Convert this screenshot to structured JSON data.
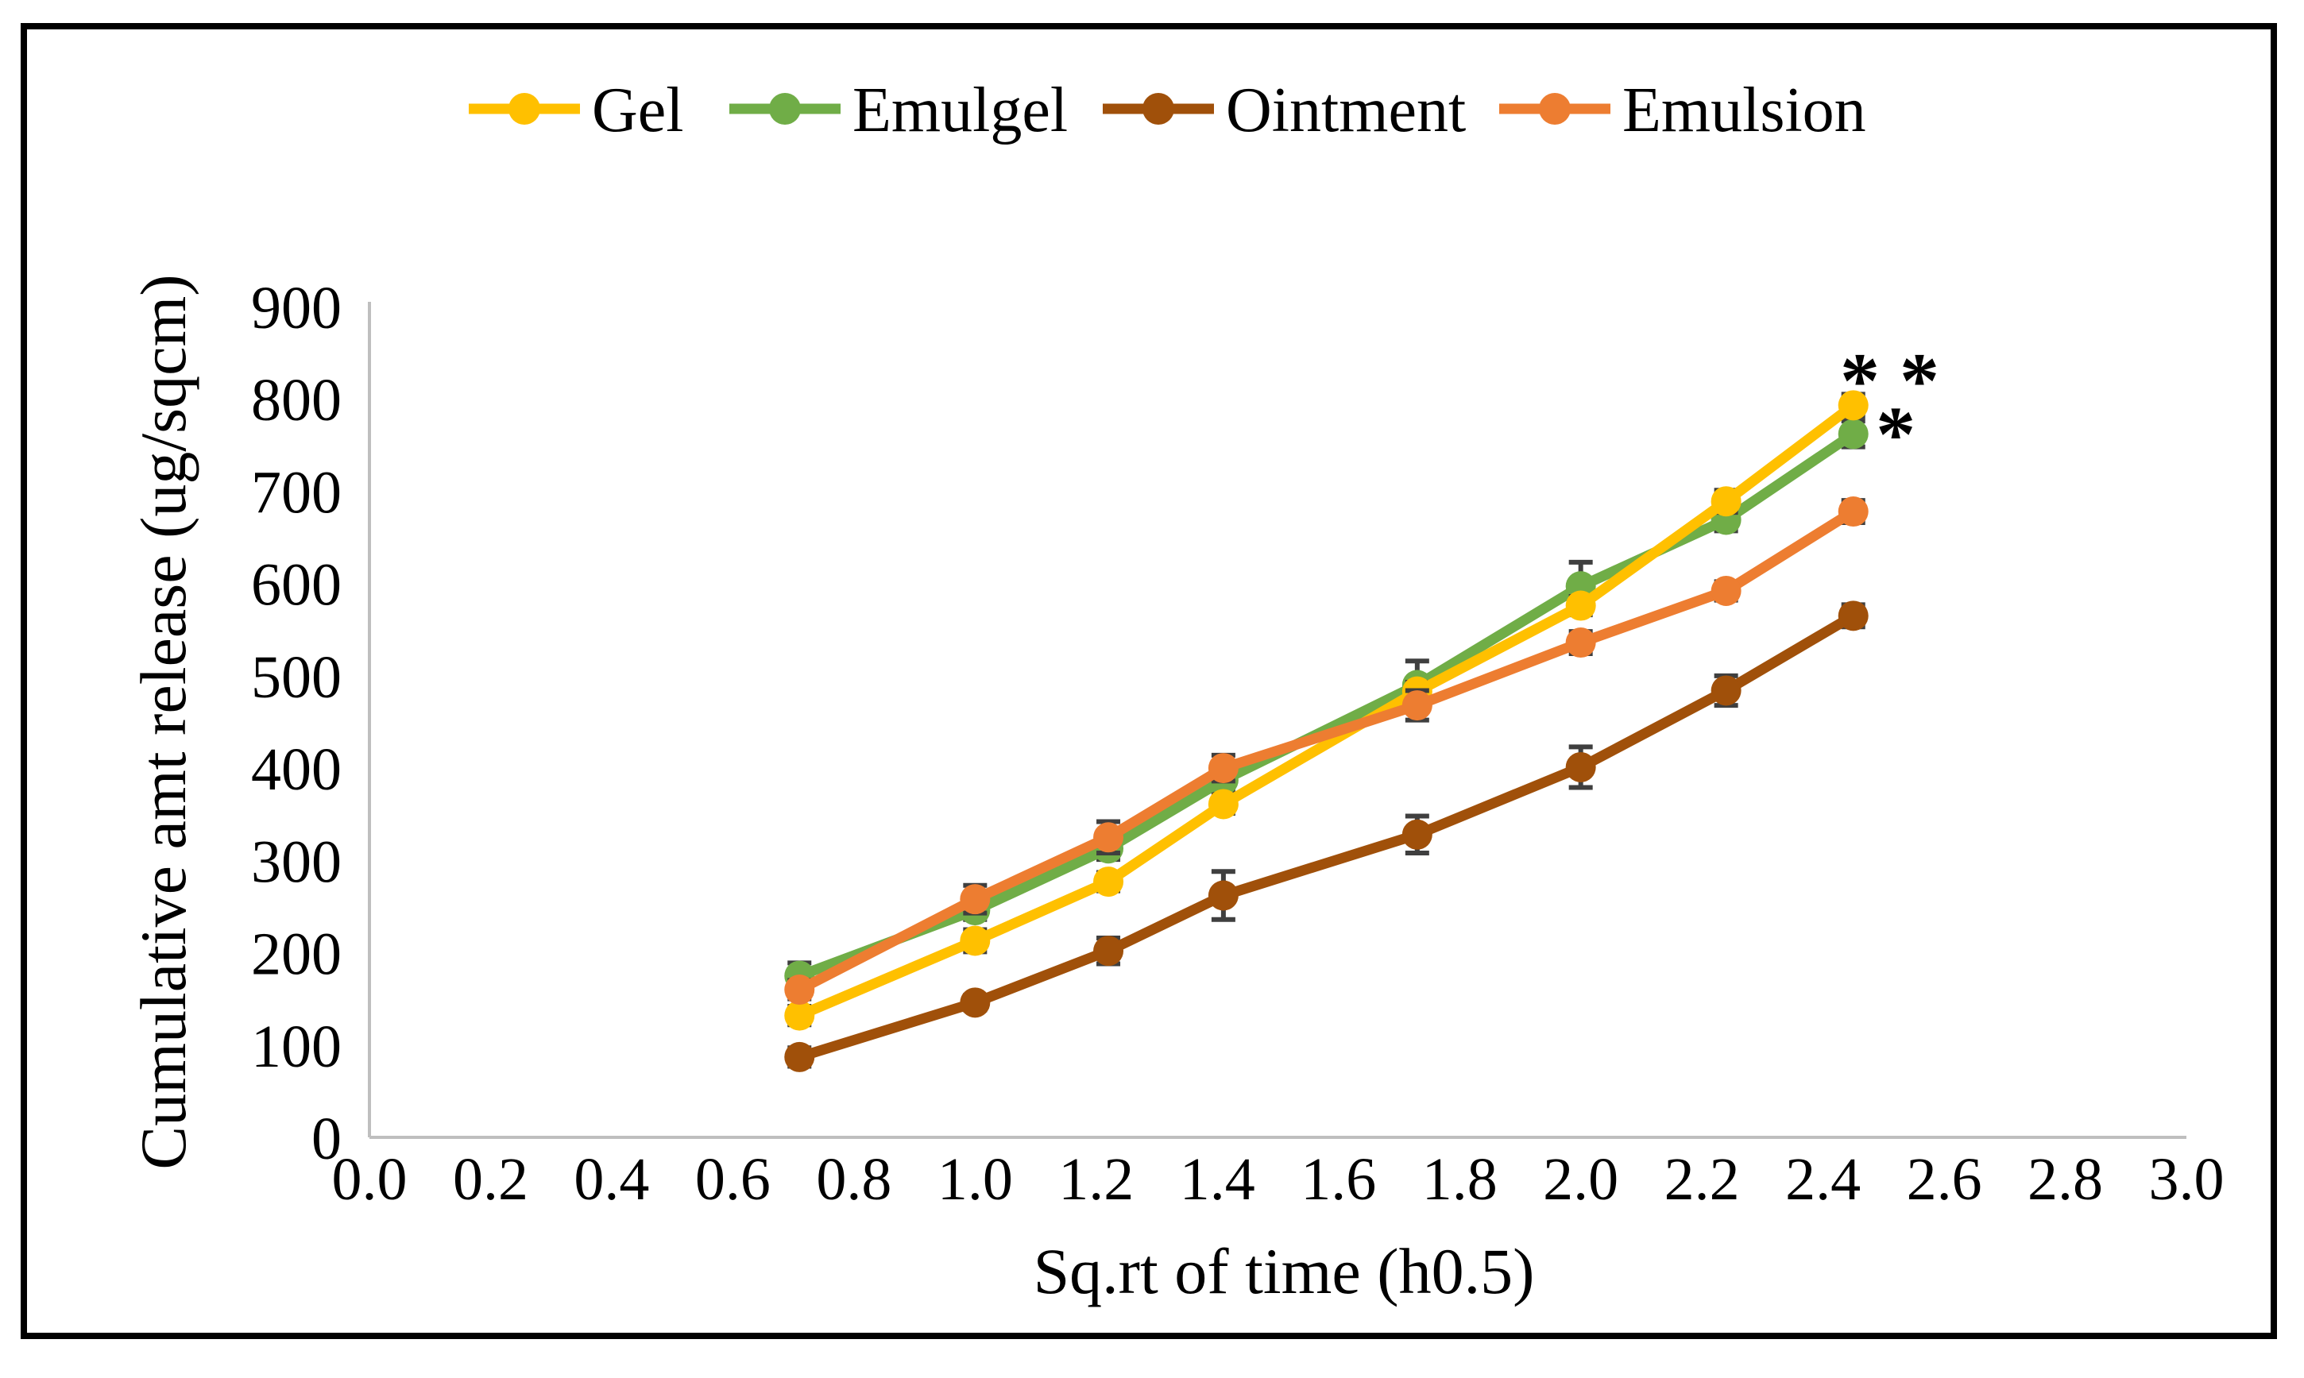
{
  "figure": {
    "background": "#ffffff",
    "border_color": "#000000",
    "axis_line_color": "#BFBFBF",
    "error_bar_color": "#3f3f3f"
  },
  "chart_data": {
    "type": "line",
    "title": "",
    "xlabel": "Sq.rt of time (h0.5)",
    "ylabel": "Cumulative amt release (ug/sqcm)",
    "x": [
      0.71,
      1.0,
      1.22,
      1.41,
      1.73,
      2.0,
      2.24,
      2.45
    ],
    "series": [
      {
        "name": "Gel",
        "color": "#FFC000",
        "values": [
          132,
          213,
          277,
          361,
          483,
          576,
          689,
          793
        ],
        "errors": [
          10,
          12,
          10,
          10,
          10,
          10,
          12,
          12
        ]
      },
      {
        "name": "Emulgel",
        "color": "#70AD47",
        "values": [
          175,
          246,
          313,
          387,
          490,
          597,
          669,
          762
        ],
        "errors": [
          14,
          10,
          12,
          12,
          26,
          26,
          12,
          14
        ]
      },
      {
        "name": "Ointment",
        "color": "#A0500A",
        "values": [
          87,
          146,
          202,
          262,
          328,
          401,
          484,
          565
        ],
        "errors": [
          10,
          8,
          14,
          26,
          20,
          22,
          16,
          12
        ]
      },
      {
        "name": "Emulsion",
        "color": "#ED7D31",
        "values": [
          160,
          258,
          325,
          400,
          468,
          536,
          592,
          678
        ],
        "errors": [
          10,
          15,
          17,
          14,
          16,
          12,
          10,
          12
        ]
      }
    ],
    "x_axis": {
      "min": 0.0,
      "max": 3.0,
      "step": 0.2,
      "decimals": 1
    },
    "y_axis": {
      "min": 0,
      "max": 900,
      "step": 100,
      "decimals": 0
    },
    "legend_position": "top",
    "grid": false,
    "annotations": [
      {
        "text": "* *",
        "x": 2.51,
        "y": 836,
        "note": "significance marker near Gel end point"
      },
      {
        "text": "*",
        "x": 2.52,
        "y": 778,
        "note": "significance marker near Emulgel end point"
      }
    ]
  }
}
